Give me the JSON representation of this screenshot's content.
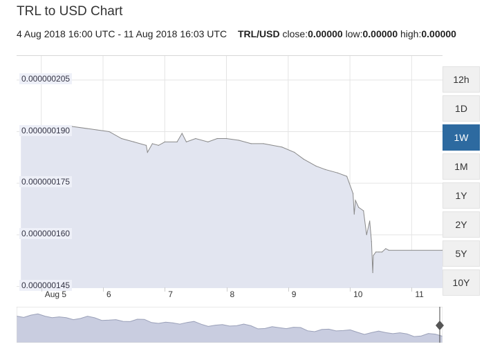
{
  "header": {
    "title": "TRL to USD Chart",
    "range_text": "4 Aug 2018 16:00 UTC - 11 Aug 2018 16:03 UTC",
    "pair": "TRL/USD",
    "close_label": "close:",
    "close_value": "0.00000",
    "low_label": "low:",
    "low_value": "0.00000",
    "high_label": "high:",
    "high_value": "0.00000"
  },
  "range_buttons": [
    {
      "label": "12h",
      "active": false
    },
    {
      "label": "1D",
      "active": false
    },
    {
      "label": "1W",
      "active": true
    },
    {
      "label": "1M",
      "active": false
    },
    {
      "label": "1Y",
      "active": false
    },
    {
      "label": "2Y",
      "active": false
    },
    {
      "label": "5Y",
      "active": false
    },
    {
      "label": "10Y",
      "active": false
    }
  ],
  "colors": {
    "area_fill": "#e2e5f0",
    "line": "#888888",
    "grid": "#e4e4e4",
    "active_button": "#2d6aa0",
    "ylabel_bg": "#eef0f8"
  },
  "chart_data": {
    "type": "area",
    "title": "TRL to USD Chart",
    "grid": true,
    "legend": "none",
    "x_domain": [
      4.6,
      11.5
    ],
    "ylim": [
      1.445e-07,
      2.12e-07
    ],
    "y_ticks": [
      1.45e-07,
      1.6e-07,
      1.75e-07,
      1.9e-07,
      2.05e-07
    ],
    "y_tick_labels": [
      "0.000000145",
      "0.000000160",
      "0.000000175",
      "0.000000190",
      "0.000000205"
    ],
    "x_ticks": [
      5,
      6,
      7,
      8,
      9,
      10,
      11
    ],
    "x_tick_labels": [
      "Aug 5",
      "6",
      "7",
      "8",
      "9",
      "10",
      "11"
    ],
    "x": [
      4.67,
      5.0,
      5.5,
      5.9,
      6.1,
      6.3,
      6.5,
      6.7,
      6.72,
      6.8,
      6.9,
      7.0,
      7.2,
      7.28,
      7.35,
      7.5,
      7.7,
      7.85,
      8.0,
      8.2,
      8.4,
      8.6,
      8.9,
      9.1,
      9.25,
      9.45,
      9.6,
      9.8,
      9.95,
      10.05,
      10.07,
      10.09,
      10.14,
      10.22,
      10.27,
      10.32,
      10.35,
      10.37,
      10.38,
      10.42,
      10.47,
      10.52,
      10.58,
      10.63,
      11.5
    ],
    "y": [
      1.915e-07,
      1.915e-07,
      1.915e-07,
      1.905e-07,
      1.9e-07,
      1.88e-07,
      1.87e-07,
      1.86e-07,
      1.84e-07,
      1.865e-07,
      1.86e-07,
      1.87e-07,
      1.87e-07,
      1.895e-07,
      1.87e-07,
      1.88e-07,
      1.87e-07,
      1.88e-07,
      1.88e-07,
      1.875e-07,
      1.865e-07,
      1.865e-07,
      1.855e-07,
      1.84e-07,
      1.82e-07,
      1.8e-07,
      1.79e-07,
      1.78e-07,
      1.77e-07,
      1.72e-07,
      1.66e-07,
      1.7e-07,
      1.68e-07,
      1.67e-07,
      1.6e-07,
      1.64e-07,
      1.58e-07,
      1.49e-07,
      1.54e-07,
      1.55e-07,
      1.55e-07,
      1.55e-07,
      1.56e-07,
      1.555e-07,
      1.555e-07
    ]
  }
}
